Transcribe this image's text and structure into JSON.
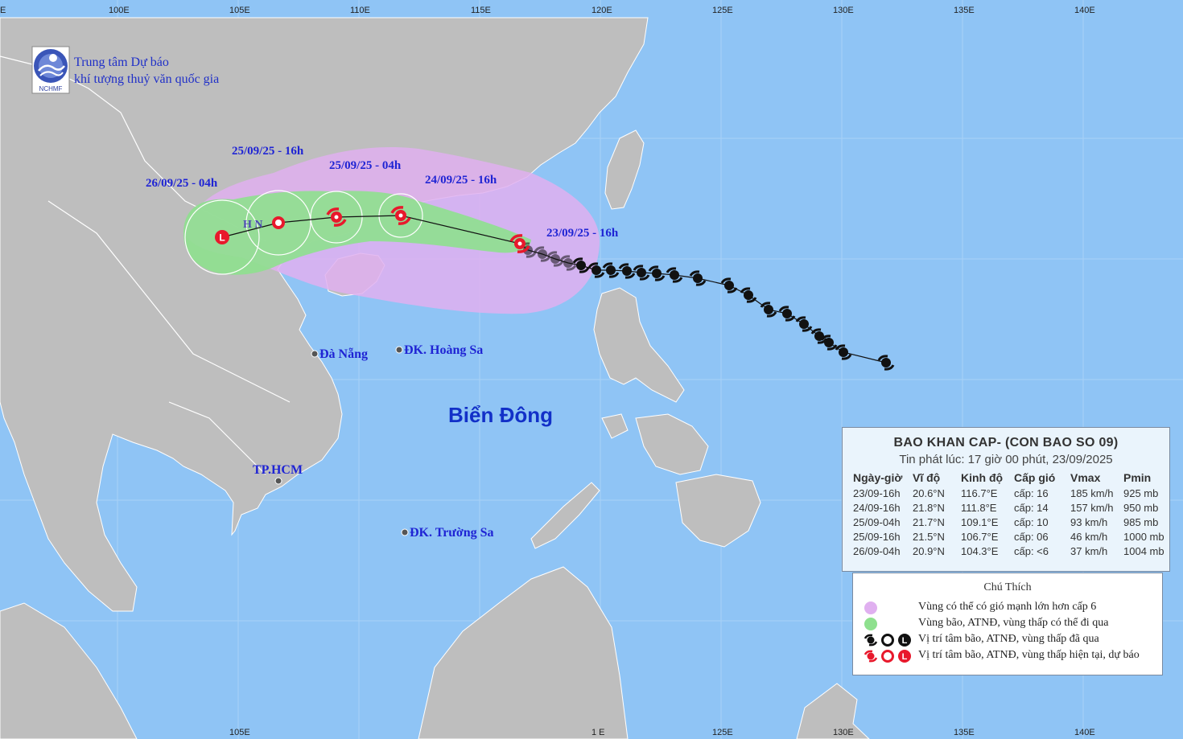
{
  "header": {
    "org_line1": "Trung tâm Dự báo",
    "org_line2": "khí tượng thuỷ văn quốc gia",
    "logo_text": "NCHMF"
  },
  "axes": {
    "top_ticks": [
      "E",
      "100E",
      "105E",
      "110E",
      "115E",
      "120E",
      "125E",
      "130E",
      "135E",
      "140E"
    ],
    "bottom_ticks": [
      "105E",
      "1 E",
      "125E",
      "130E",
      "135E",
      "140E"
    ]
  },
  "track_labels": {
    "t1": "23/09/25 - 16h",
    "t2": "24/09/25 - 16h",
    "t3": "25/09/25 - 04h",
    "t4": "25/09/25 - 16h",
    "t5": "26/09/25 - 04h"
  },
  "places": {
    "hanoi": "H N",
    "danang": "Đà Nẵng",
    "hoangsa": "ĐK. Hoàng Sa",
    "hcm": "TP.HCM",
    "truongsa": "ĐK. Trường Sa",
    "sea": "Biển Đông"
  },
  "bulletin": {
    "title": "BAO KHAN CAP- (CON BAO SO 09)",
    "issued": "Tin phát lúc: 17 giờ 00 phút, 23/09/2025",
    "columns": [
      "Ngày-giờ",
      "Vĩ độ",
      "Kinh độ",
      "Cấp gió",
      "Vmax",
      "Pmin"
    ],
    "rows": [
      [
        "23/09-16h",
        "20.6°N",
        "116.7°E",
        "cấp: 16",
        "185 km/h",
        "925 mb"
      ],
      [
        "24/09-16h",
        "21.8°N",
        "111.8°E",
        "cấp: 14",
        "157 km/h",
        "950 mb"
      ],
      [
        "25/09-04h",
        "21.7°N",
        "109.1°E",
        "cấp: 10",
        "93 km/h",
        "985 mb"
      ],
      [
        "25/09-16h",
        "21.5°N",
        "106.7°E",
        "cấp: 06",
        "46 km/h",
        "1000 mb"
      ],
      [
        "26/09-04h",
        "20.9°N",
        "104.3°E",
        "cấp: <6",
        "37 km/h",
        "1004 mb"
      ]
    ]
  },
  "legend": {
    "title": "Chú Thích",
    "items": [
      "Vùng có thể có gió mạnh lớn hơn cấp 6",
      "Vùng bão, ATNĐ, vùng thấp có thể đi qua",
      "Vị trí tâm bão, ATNĐ, vùng thấp đã qua",
      "Vị trí tâm bão, ATNĐ, vùng thấp hiện tại, dự báo"
    ],
    "symbol_L": "L"
  },
  "colors": {
    "sea": "#8fc4f5",
    "land": "#bebebe",
    "wind_zone": "#e0b0f0",
    "cone": "#8ee08e",
    "storm_red": "#e8192c",
    "past_track": "#111111"
  }
}
